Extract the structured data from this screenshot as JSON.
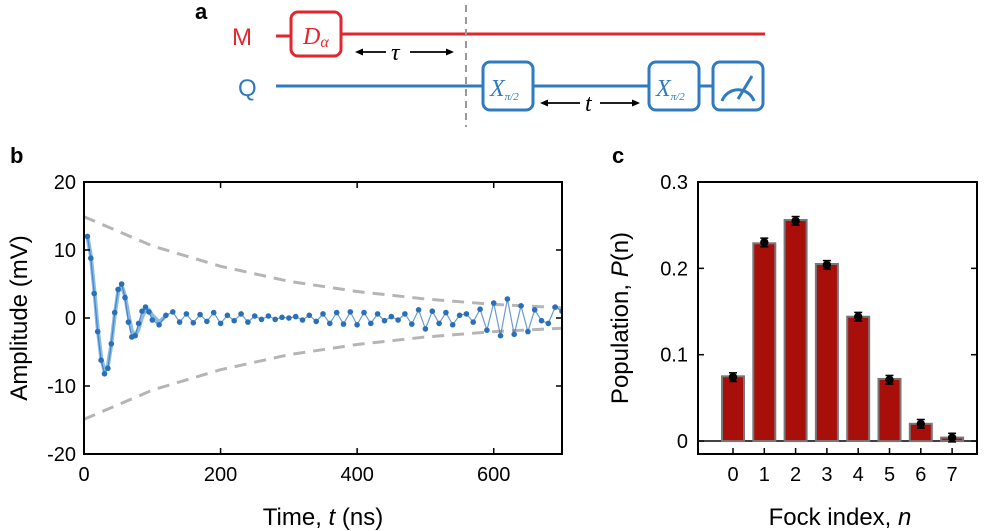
{
  "colors": {
    "mode_line": "#e3262e",
    "qubit_line": "#2f7bc1",
    "data_points": "#2a70b8",
    "fit_curve": "#8ab9e8",
    "envelope": "#b5b5b5",
    "bar_fill": "#a80f0a",
    "bar_edge": "#777777"
  },
  "panel_a": {
    "letter": "a",
    "mode_label": "M",
    "qubit_label": "Q",
    "displacement_gate": "D",
    "displacement_sub": "α",
    "pulse1_gate": "X",
    "pulse1_sub": "π/2",
    "pulse2_gate": "X",
    "pulse2_sub": "π/2",
    "delay_tau": "τ",
    "delay_t": "t",
    "measure_icon": "meter-icon"
  },
  "panel_b": {
    "letter": "b",
    "xlabel_prefix": "Time, ",
    "xlabel_var": "t",
    "xlabel_suffix": " (ns)",
    "ylabel": "Amplitude (mV)"
  },
  "panel_c": {
    "letter": "c",
    "xlabel_prefix": "Fock index, ",
    "xlabel_var": "n",
    "ylabel_prefix": "Population, ",
    "ylabel_var": "P",
    "ylabel_suffix": "(n)"
  },
  "chart_data": [
    {
      "id": "b",
      "type": "scatter",
      "title": "",
      "xlabel": "Time, t (ns)",
      "ylabel": "Amplitude (mV)",
      "xlim": [
        0,
        700
      ],
      "ylim": [
        -20,
        20
      ],
      "xticks": [
        0,
        200,
        400,
        600
      ],
      "yticks": [
        -20,
        -10,
        0,
        10,
        20
      ],
      "xtick_labels": [
        "0",
        "200",
        "400",
        "600"
      ],
      "ytick_labels": [
        "-20",
        "-10",
        "0",
        "10",
        "20"
      ],
      "series": [
        {
          "name": "data",
          "style": "points",
          "x": [
            5,
            10,
            15,
            20,
            25,
            30,
            35,
            40,
            45,
            50,
            55,
            60,
            65,
            70,
            75,
            80,
            85,
            90,
            95,
            100,
            110,
            120,
            130,
            140,
            150,
            160,
            170,
            180,
            190,
            200,
            210,
            220,
            230,
            240,
            250,
            260,
            270,
            280,
            290,
            300,
            310,
            320,
            330,
            340,
            350,
            360,
            370,
            380,
            390,
            400,
            410,
            420,
            430,
            440,
            450,
            460,
            470,
            480,
            490,
            500,
            510,
            520,
            530,
            540,
            550,
            560,
            570,
            580,
            590,
            600,
            610,
            620,
            630,
            640,
            650,
            660,
            670,
            680,
            690,
            700
          ],
          "y": [
            12.0,
            8.8,
            3.6,
            -2.0,
            -6.2,
            -8.2,
            -7.4,
            -3.8,
            0.8,
            4.2,
            5.0,
            3.0,
            -0.6,
            -2.8,
            -2.6,
            -0.8,
            1.0,
            1.6,
            0.9,
            -0.3,
            -1.0,
            0.4,
            0.9,
            -0.6,
            0.6,
            -0.7,
            0.5,
            -0.5,
            0.8,
            -0.8,
            0.4,
            -0.4,
            0.6,
            -0.6,
            0.3,
            -0.2,
            0.3,
            -0.2,
            0.1,
            0.0,
            0.2,
            -0.3,
            0.4,
            -0.5,
            0.6,
            -0.8,
            0.8,
            -0.9,
            0.9,
            -1.0,
            0.8,
            -0.8,
            0.6,
            -0.4,
            0.2,
            -0.3,
            0.6,
            -0.9,
            1.2,
            -1.6,
            1.0,
            -0.8,
            0.8,
            -1.0,
            0.4,
            0.6,
            -0.6,
            1.3,
            -1.8,
            2.2,
            -2.6,
            2.8,
            -2.4,
            1.8,
            -2.0,
            1.2,
            -0.4,
            -0.8,
            1.6,
            1.0
          ]
        },
        {
          "name": "fit",
          "style": "line",
          "x": [
            5,
            10,
            15,
            20,
            25,
            30,
            35,
            40,
            45,
            50,
            55,
            60,
            65,
            70,
            75,
            80,
            85,
            90,
            95,
            100,
            110,
            120
          ],
          "y": [
            12.0,
            9.2,
            4.2,
            -1.5,
            -5.8,
            -7.8,
            -7.0,
            -3.9,
            0.4,
            3.8,
            4.8,
            3.3,
            0.5,
            -1.9,
            -2.6,
            -1.6,
            0.1,
            1.2,
            1.2,
            0.4,
            -0.6,
            0.3
          ]
        },
        {
          "name": "upper envelope",
          "style": "dashed",
          "x": [
            0,
            100,
            200,
            300,
            400,
            500,
            600,
            700
          ],
          "y": [
            14.9,
            10.6,
            7.6,
            5.4,
            3.9,
            2.8,
            2.0,
            1.5
          ]
        },
        {
          "name": "lower envelope",
          "style": "dashed",
          "x": [
            0,
            100,
            200,
            300,
            400,
            500,
            600,
            700
          ],
          "y": [
            -14.9,
            -10.6,
            -7.6,
            -5.4,
            -3.9,
            -2.8,
            -2.0,
            -1.5
          ]
        }
      ]
    },
    {
      "id": "c",
      "type": "bar",
      "title": "",
      "xlabel": "Fock index, n",
      "ylabel": "Population, P(n)",
      "categories": [
        "0",
        "1",
        "2",
        "3",
        "4",
        "5",
        "6",
        "7"
      ],
      "values": [
        0.075,
        0.229,
        0.256,
        0.205,
        0.144,
        0.072,
        0.02,
        0.004
      ],
      "points": [
        0.074,
        0.23,
        0.255,
        0.204,
        0.144,
        0.071,
        0.02,
        0.004
      ],
      "errors": [
        0.005,
        0.005,
        0.005,
        0.005,
        0.005,
        0.005,
        0.005,
        0.005
      ],
      "ylim": [
        -0.015,
        0.3
      ],
      "yticks": [
        0,
        0.1,
        0.2,
        0.3
      ],
      "ytick_labels": [
        "0",
        "0.1",
        "0.2",
        "0.3"
      ]
    }
  ]
}
